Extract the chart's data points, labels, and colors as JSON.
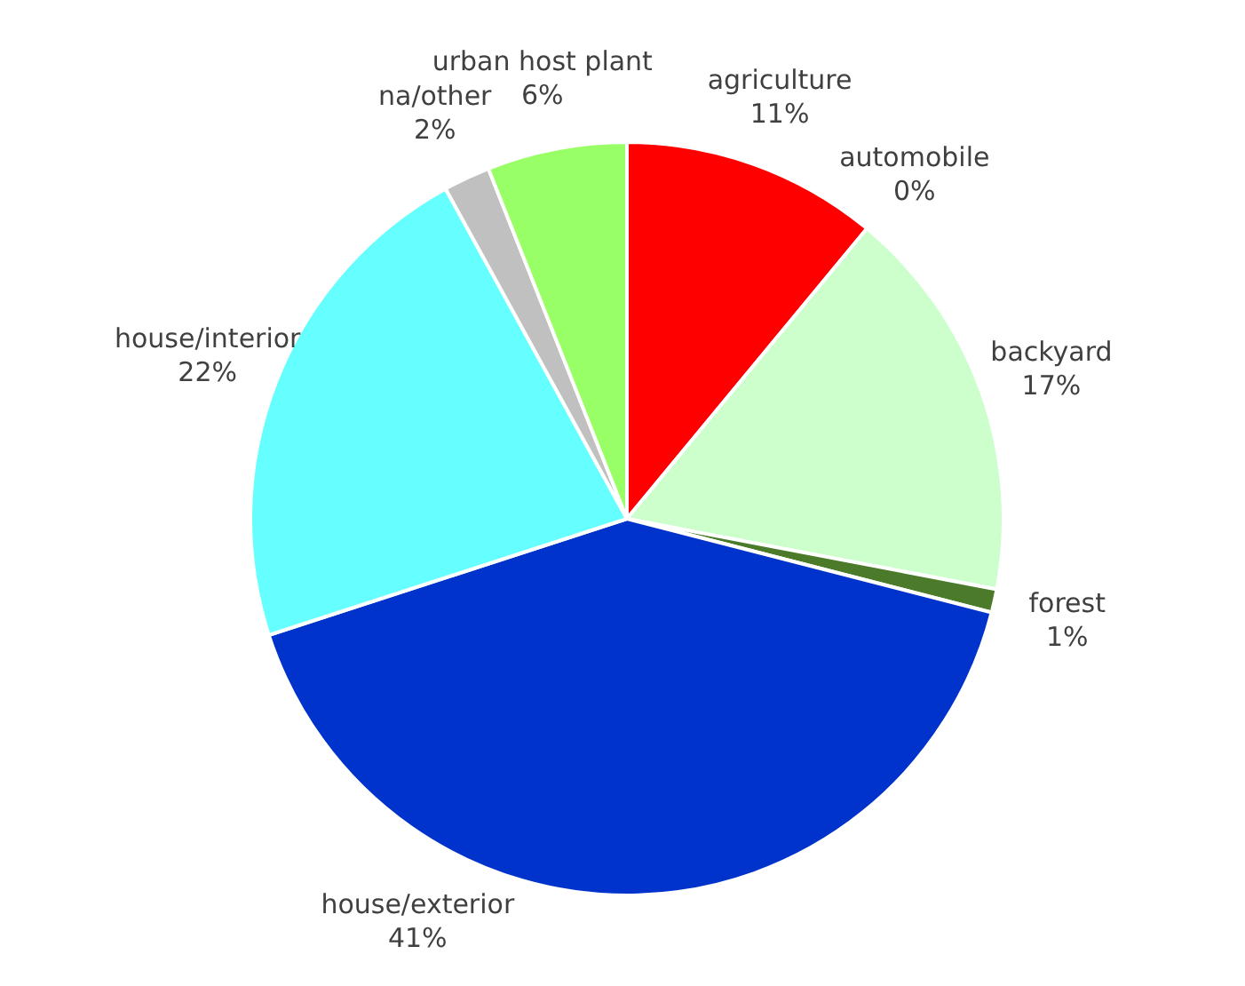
{
  "chart_data": {
    "type": "pie",
    "categories": [
      "agriculture",
      "automobile",
      "backyard",
      "forest",
      "house/exterior",
      "house/interior",
      "na/other",
      "urban host plant"
    ],
    "values": [
      11,
      0,
      17,
      1,
      41,
      22,
      2,
      6
    ],
    "colors": [
      "#ff0000",
      null,
      "#ccffcc",
      "#4a7a2a",
      "#0033cc",
      "#66ffff",
      "#c0c0c0",
      "#99ff66"
    ],
    "value_labels": [
      "11%",
      "0%",
      "17%",
      "1%",
      "41%",
      "22%",
      "2%",
      "6%"
    ]
  }
}
